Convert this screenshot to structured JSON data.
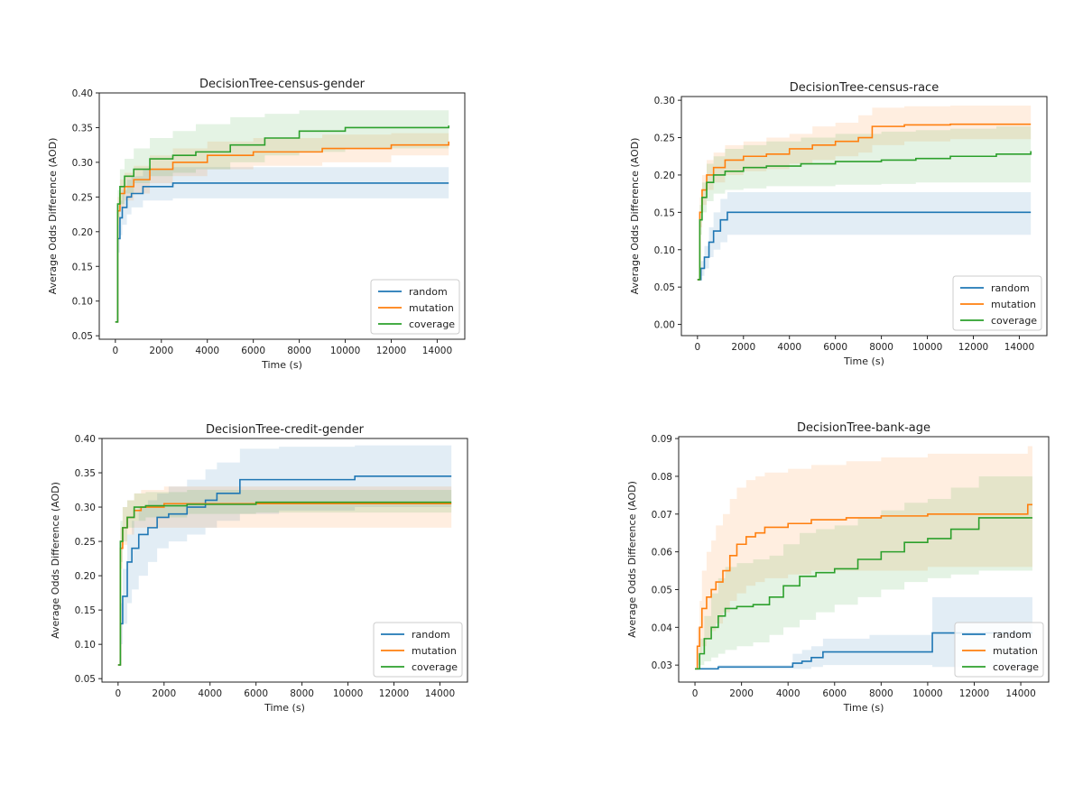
{
  "figure": {
    "background": "#ffffff",
    "series_colors": {
      "random": "#1f77b4",
      "mutation": "#ff7f0e",
      "coverage": "#2ca02c"
    }
  },
  "chart_data": [
    {
      "type": "line",
      "title": "DecisionTree-census-gender",
      "xlabel": "Time (s)",
      "ylabel": "Average Odds Difference (AOD)",
      "xlim": [
        -700,
        15200
      ],
      "ylim": [
        0.045,
        0.4
      ],
      "xticks": [
        0,
        2000,
        4000,
        6000,
        8000,
        10000,
        12000,
        14000
      ],
      "xtick_labels": [
        "0",
        "2000",
        "4000",
        "6000",
        "8000",
        "10000",
        "12000",
        "14000"
      ],
      "yticks": [
        0.05,
        0.1,
        0.15,
        0.2,
        0.25,
        0.3,
        0.35,
        0.4
      ],
      "ytick_labels": [
        "0.05",
        "0.10",
        "0.15",
        "0.20",
        "0.25",
        "0.30",
        "0.35",
        "0.40"
      ],
      "legend": {
        "position": "lower-right",
        "entries": [
          "random",
          "mutation",
          "coverage"
        ]
      },
      "series": [
        {
          "name": "random",
          "color": "#1f77b4",
          "x": [
            0,
            100,
            200,
            300,
            500,
            700,
            1200,
            2500,
            14500
          ],
          "y": [
            0.07,
            0.19,
            0.22,
            0.235,
            0.25,
            0.255,
            0.265,
            0.27,
            0.27
          ],
          "lower": [
            0.07,
            0.17,
            0.195,
            0.21,
            0.225,
            0.235,
            0.245,
            0.248,
            0.248
          ],
          "upper": [
            0.07,
            0.21,
            0.245,
            0.26,
            0.275,
            0.28,
            0.29,
            0.293,
            0.293
          ]
        },
        {
          "name": "mutation",
          "color": "#ff7f0e",
          "x": [
            0,
            100,
            200,
            400,
            800,
            1500,
            2500,
            4000,
            6000,
            9000,
            12000,
            14500
          ],
          "y": [
            0.07,
            0.23,
            0.255,
            0.265,
            0.275,
            0.29,
            0.3,
            0.31,
            0.315,
            0.32,
            0.325,
            0.33
          ],
          "lower": [
            0.07,
            0.21,
            0.235,
            0.245,
            0.255,
            0.27,
            0.28,
            0.29,
            0.295,
            0.3,
            0.31,
            0.322
          ],
          "upper": [
            0.07,
            0.25,
            0.275,
            0.285,
            0.295,
            0.31,
            0.32,
            0.33,
            0.335,
            0.34,
            0.342,
            0.34
          ]
        },
        {
          "name": "coverage",
          "color": "#2ca02c",
          "x": [
            0,
            100,
            200,
            400,
            800,
            1500,
            2500,
            3500,
            5000,
            6500,
            8000,
            10000,
            14500
          ],
          "y": [
            0.07,
            0.24,
            0.265,
            0.28,
            0.29,
            0.305,
            0.31,
            0.315,
            0.325,
            0.335,
            0.345,
            0.35,
            0.353
          ],
          "lower": [
            0.07,
            0.22,
            0.24,
            0.255,
            0.27,
            0.28,
            0.285,
            0.29,
            0.3,
            0.31,
            0.315,
            0.32,
            0.33
          ],
          "upper": [
            0.07,
            0.26,
            0.29,
            0.305,
            0.32,
            0.335,
            0.345,
            0.355,
            0.365,
            0.37,
            0.375,
            0.375,
            0.375
          ]
        }
      ]
    },
    {
      "type": "line",
      "title": "DecisionTree-census-race",
      "xlabel": "Time (s)",
      "ylabel": "Average Odds Difference (AOD)",
      "xlim": [
        -700,
        15200
      ],
      "ylim": [
        -0.015,
        0.305
      ],
      "xticks": [
        0,
        2000,
        4000,
        6000,
        8000,
        10000,
        12000,
        14000
      ],
      "xtick_labels": [
        "0",
        "2000",
        "4000",
        "6000",
        "8000",
        "10000",
        "12000",
        "14000"
      ],
      "yticks": [
        0.0,
        0.05,
        0.1,
        0.15,
        0.2,
        0.25,
        0.3
      ],
      "ytick_labels": [
        "0.00",
        "0.05",
        "0.10",
        "0.15",
        "0.20",
        "0.25",
        "0.30"
      ],
      "legend": {
        "position": "lower-right",
        "entries": [
          "random",
          "mutation",
          "coverage"
        ]
      },
      "series": [
        {
          "name": "random",
          "color": "#1f77b4",
          "x": [
            0,
            150,
            300,
            500,
            700,
            1000,
            1300,
            14500
          ],
          "y": [
            0.06,
            0.075,
            0.09,
            0.11,
            0.125,
            0.14,
            0.15,
            0.15
          ],
          "lower": [
            0.06,
            0.065,
            0.075,
            0.09,
            0.1,
            0.11,
            0.12,
            0.12
          ],
          "upper": [
            0.06,
            0.085,
            0.105,
            0.13,
            0.15,
            0.168,
            0.177,
            0.177
          ]
        },
        {
          "name": "mutation",
          "color": "#ff7f0e",
          "x": [
            0,
            100,
            200,
            400,
            700,
            1200,
            2000,
            3000,
            4000,
            5000,
            6000,
            7000,
            7600,
            9000,
            11000,
            14500
          ],
          "y": [
            0.06,
            0.15,
            0.18,
            0.2,
            0.21,
            0.22,
            0.225,
            0.228,
            0.235,
            0.24,
            0.245,
            0.25,
            0.265,
            0.267,
            0.268,
            0.268
          ],
          "lower": [
            0.06,
            0.13,
            0.16,
            0.18,
            0.19,
            0.2,
            0.205,
            0.208,
            0.215,
            0.22,
            0.225,
            0.23,
            0.24,
            0.245,
            0.248,
            0.25
          ],
          "upper": [
            0.06,
            0.17,
            0.2,
            0.22,
            0.23,
            0.24,
            0.245,
            0.25,
            0.255,
            0.265,
            0.27,
            0.28,
            0.29,
            0.292,
            0.293,
            0.293
          ]
        },
        {
          "name": "coverage",
          "color": "#2ca02c",
          "x": [
            0,
            100,
            200,
            400,
            700,
            1200,
            2000,
            3000,
            4500,
            6000,
            8000,
            9500,
            11000,
            13000,
            14500
          ],
          "y": [
            0.06,
            0.14,
            0.17,
            0.19,
            0.2,
            0.205,
            0.21,
            0.212,
            0.215,
            0.218,
            0.22,
            0.222,
            0.225,
            0.228,
            0.232
          ],
          "lower": [
            0.06,
            0.12,
            0.15,
            0.165,
            0.175,
            0.18,
            0.182,
            0.185,
            0.185,
            0.187,
            0.188,
            0.19,
            0.19,
            0.19,
            0.19
          ],
          "upper": [
            0.06,
            0.16,
            0.19,
            0.215,
            0.225,
            0.235,
            0.24,
            0.245,
            0.25,
            0.255,
            0.258,
            0.26,
            0.262,
            0.265,
            0.265
          ]
        }
      ]
    },
    {
      "type": "line",
      "title": "DecisionTree-credit-gender",
      "xlabel": "Time (s)",
      "ylabel": "Average Odds Difference (AOD)",
      "xlim": [
        -700,
        15200
      ],
      "ylim": [
        0.045,
        0.4
      ],
      "xticks": [
        0,
        2000,
        4000,
        6000,
        8000,
        10000,
        12000,
        14000
      ],
      "xtick_labels": [
        "0",
        "2000",
        "4000",
        "6000",
        "8000",
        "10000",
        "12000",
        "14000"
      ],
      "yticks": [
        0.05,
        0.1,
        0.15,
        0.2,
        0.25,
        0.3,
        0.35,
        0.4
      ],
      "ytick_labels": [
        "0.05",
        "0.10",
        "0.15",
        "0.20",
        "0.25",
        "0.30",
        "0.35",
        "0.40"
      ],
      "legend": {
        "position": "lower-right",
        "entries": [
          "random",
          "mutation",
          "coverage"
        ]
      },
      "series": [
        {
          "name": "random",
          "color": "#1f77b4",
          "x": [
            0,
            100,
            200,
            400,
            600,
            900,
            1300,
            1700,
            2200,
            3000,
            3800,
            4300,
            5300,
            7000,
            10300,
            14500
          ],
          "y": [
            0.07,
            0.13,
            0.17,
            0.22,
            0.24,
            0.26,
            0.27,
            0.285,
            0.29,
            0.3,
            0.31,
            0.32,
            0.34,
            0.34,
            0.345,
            0.345
          ],
          "lower": [
            0.07,
            0.1,
            0.13,
            0.16,
            0.18,
            0.2,
            0.22,
            0.24,
            0.25,
            0.26,
            0.27,
            0.28,
            0.29,
            0.295,
            0.3,
            0.3
          ],
          "upper": [
            0.07,
            0.16,
            0.21,
            0.26,
            0.28,
            0.3,
            0.31,
            0.32,
            0.33,
            0.34,
            0.355,
            0.365,
            0.385,
            0.388,
            0.39,
            0.39
          ]
        },
        {
          "name": "mutation",
          "color": "#ff7f0e",
          "x": [
            0,
            100,
            200,
            400,
            700,
            1000,
            2000,
            14500
          ],
          "y": [
            0.07,
            0.24,
            0.27,
            0.285,
            0.295,
            0.3,
            0.305,
            0.305
          ],
          "lower": [
            0.07,
            0.21,
            0.245,
            0.26,
            0.27,
            0.27,
            0.27,
            0.27
          ],
          "upper": [
            0.07,
            0.27,
            0.3,
            0.31,
            0.32,
            0.325,
            0.33,
            0.33
          ]
        },
        {
          "name": "coverage",
          "color": "#2ca02c",
          "x": [
            0,
            100,
            200,
            400,
            700,
            1200,
            3000,
            6000,
            14500
          ],
          "y": [
            0.07,
            0.25,
            0.27,
            0.285,
            0.3,
            0.302,
            0.304,
            0.307,
            0.307
          ],
          "lower": [
            0.07,
            0.22,
            0.25,
            0.27,
            0.28,
            0.285,
            0.29,
            0.292,
            0.295
          ],
          "upper": [
            0.07,
            0.28,
            0.3,
            0.31,
            0.32,
            0.322,
            0.325,
            0.325,
            0.325
          ]
        }
      ]
    },
    {
      "type": "line",
      "title": "DecisionTree-bank-age",
      "xlabel": "Time (s)",
      "ylabel": "Average Odds Difference (AOD)",
      "xlim": [
        -700,
        15200
      ],
      "ylim": [
        0.0255,
        0.0905
      ],
      "xticks": [
        0,
        2000,
        4000,
        6000,
        8000,
        10000,
        12000,
        14000
      ],
      "xtick_labels": [
        "0",
        "2000",
        "4000",
        "6000",
        "8000",
        "10000",
        "12000",
        "14000"
      ],
      "yticks": [
        0.03,
        0.04,
        0.05,
        0.06,
        0.07,
        0.08,
        0.09
      ],
      "ytick_labels": [
        "0.03",
        "0.04",
        "0.05",
        "0.06",
        "0.07",
        "0.08",
        "0.09"
      ],
      "legend": {
        "position": "lower-right",
        "entries": [
          "random",
          "mutation",
          "coverage"
        ]
      },
      "series": [
        {
          "name": "random",
          "color": "#1f77b4",
          "x": [
            0,
            1000,
            4200,
            4600,
            5000,
            5500,
            7500,
            10200,
            14500
          ],
          "y": [
            0.029,
            0.0295,
            0.0305,
            0.031,
            0.032,
            0.0335,
            0.0335,
            0.0385,
            0.0385
          ],
          "lower": [
            0.029,
            0.029,
            0.029,
            0.029,
            0.0295,
            0.03,
            0.03,
            0.0295,
            0.0295
          ],
          "upper": [
            0.029,
            0.03,
            0.033,
            0.034,
            0.035,
            0.037,
            0.038,
            0.048,
            0.048
          ]
        },
        {
          "name": "mutation",
          "color": "#ff7f0e",
          "x": [
            0,
            100,
            200,
            300,
            500,
            700,
            900,
            1200,
            1500,
            1800,
            2200,
            2600,
            3000,
            4000,
            5000,
            6500,
            8000,
            10000,
            12000,
            14300,
            14500
          ],
          "y": [
            0.029,
            0.035,
            0.04,
            0.045,
            0.048,
            0.05,
            0.052,
            0.055,
            0.059,
            0.062,
            0.064,
            0.065,
            0.0665,
            0.0675,
            0.0685,
            0.069,
            0.0695,
            0.07,
            0.07,
            0.0725,
            0.0725
          ],
          "lower": [
            0.029,
            0.03,
            0.033,
            0.035,
            0.037,
            0.039,
            0.041,
            0.044,
            0.047,
            0.049,
            0.051,
            0.052,
            0.053,
            0.054,
            0.055,
            0.055,
            0.055,
            0.056,
            0.056,
            0.056,
            0.056
          ],
          "upper": [
            0.029,
            0.04,
            0.047,
            0.055,
            0.06,
            0.063,
            0.067,
            0.07,
            0.074,
            0.077,
            0.079,
            0.08,
            0.081,
            0.082,
            0.083,
            0.084,
            0.085,
            0.086,
            0.086,
            0.088,
            0.088
          ]
        },
        {
          "name": "coverage",
          "color": "#2ca02c",
          "x": [
            0,
            200,
            400,
            700,
            1000,
            1300,
            1800,
            2500,
            3200,
            3800,
            4500,
            5200,
            6000,
            7000,
            8000,
            9000,
            10000,
            11000,
            12200,
            14500
          ],
          "y": [
            0.029,
            0.033,
            0.037,
            0.04,
            0.043,
            0.045,
            0.0455,
            0.046,
            0.048,
            0.051,
            0.0535,
            0.0545,
            0.0555,
            0.058,
            0.06,
            0.0625,
            0.0635,
            0.066,
            0.069,
            0.069
          ],
          "lower": [
            0.029,
            0.03,
            0.031,
            0.032,
            0.033,
            0.034,
            0.035,
            0.036,
            0.038,
            0.04,
            0.042,
            0.044,
            0.046,
            0.048,
            0.05,
            0.052,
            0.053,
            0.054,
            0.055,
            0.056
          ],
          "upper": [
            0.029,
            0.037,
            0.043,
            0.049,
            0.053,
            0.056,
            0.057,
            0.058,
            0.059,
            0.062,
            0.065,
            0.066,
            0.067,
            0.069,
            0.071,
            0.073,
            0.074,
            0.077,
            0.08,
            0.081
          ]
        }
      ]
    }
  ]
}
